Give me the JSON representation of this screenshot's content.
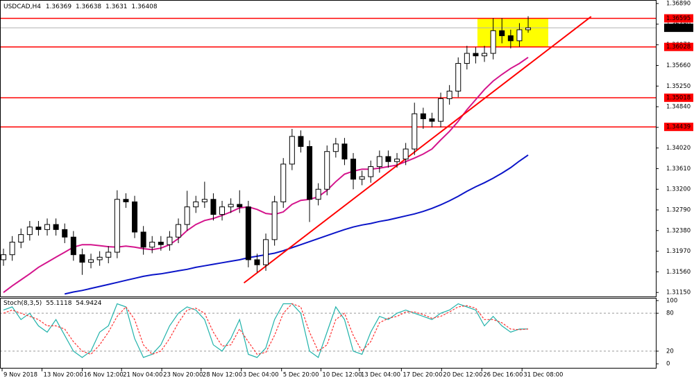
{
  "chart_data": [
    {
      "type": "candlestick",
      "title": "USDCAD,H4",
      "xlim": [
        -0.4,
        74.6
      ],
      "xticks": [
        {
          "value": -0.16,
          "label": "9 Nov 2018"
        },
        {
          "value": 4.4,
          "label": "13 Nov 20:00"
        },
        {
          "value": 9.0,
          "label": "16 Nov 12:00"
        },
        {
          "value": 13.5,
          "label": "21 Nov 04:00"
        },
        {
          "value": 18.1,
          "label": "23 Nov 20:00"
        },
        {
          "value": 22.6,
          "label": "28 Nov 12:00"
        },
        {
          "value": 27.2,
          "label": "3 Dec 04:00"
        },
        {
          "value": 31.8,
          "label": "5 Dec 20:00"
        },
        {
          "value": 36.3,
          "label": "10 Dec 12:00"
        },
        {
          "value": 40.7,
          "label": "13 Dec 04:00"
        },
        {
          "value": 45.5,
          "label": "17 Dec 20:00"
        },
        {
          "value": 50.1,
          "label": "20 Dec 12:00"
        },
        {
          "value": 54.7,
          "label": "26 Dec 16:00"
        },
        {
          "value": 59.3,
          "label": "31 Dec 08:00"
        }
      ],
      "ylim": [
        1.3107,
        1.3696
      ],
      "yticks": [
        {
          "value": 1.3689,
          "label": "1.36890"
        },
        {
          "value": 1.3648,
          "label": "1.36480"
        },
        {
          "value": 1.3607,
          "label": "1.36070"
        },
        {
          "value": 1.3566,
          "label": "1.35660"
        },
        {
          "value": 1.3525,
          "label": "1.35250"
        },
        {
          "value": 1.3484,
          "label": "1.34840"
        },
        {
          "value": 1.3443,
          "label": "1.34430"
        },
        {
          "value": 1.3402,
          "label": "1.34020"
        },
        {
          "value": 1.3361,
          "label": "1.33610"
        },
        {
          "value": 1.332,
          "label": "1.33200"
        },
        {
          "value": 1.3279,
          "label": "1.32790"
        },
        {
          "value": 1.3238,
          "label": "1.32380"
        },
        {
          "value": 1.3197,
          "label": "1.31970"
        },
        {
          "value": 1.3156,
          "label": "1.31560"
        },
        {
          "value": 1.3115,
          "label": "1.31150"
        }
      ],
      "open": [
        1.318,
        1.319,
        1.3215,
        1.323,
        1.3245,
        1.324,
        1.325,
        1.324,
        1.3225,
        1.319,
        1.3175,
        1.318,
        1.3185,
        1.3195,
        1.33,
        1.3295,
        1.3235,
        1.3205,
        1.3215,
        1.321,
        1.3225,
        1.325,
        1.3285,
        1.3295,
        1.33,
        1.327,
        1.3285,
        1.329,
        1.3285,
        1.318,
        1.317,
        1.322,
        1.3295,
        1.337,
        1.3425,
        1.3405,
        1.33,
        1.332,
        1.3395,
        1.341,
        1.338,
        1.334,
        1.3345,
        1.3365,
        1.3385,
        1.3375,
        1.338,
        1.34,
        1.347,
        1.346,
        1.3455,
        1.35,
        1.3515,
        1.357,
        1.359,
        1.3585,
        1.359,
        1.3635,
        1.3625,
        1.3615,
        1.36369
      ],
      "high": [
        1.3202,
        1.3227,
        1.3242,
        1.3257,
        1.3257,
        1.3262,
        1.3262,
        1.3252,
        1.3237,
        1.3202,
        1.3192,
        1.3197,
        1.3207,
        1.3318,
        1.3312,
        1.3307,
        1.3247,
        1.3227,
        1.3227,
        1.3237,
        1.3262,
        1.3317,
        1.3307,
        1.3335,
        1.3312,
        1.3297,
        1.3302,
        1.3318,
        1.3297,
        1.3192,
        1.3232,
        1.3307,
        1.3382,
        1.344,
        1.3437,
        1.3417,
        1.3332,
        1.3407,
        1.3422,
        1.3422,
        1.3392,
        1.3357,
        1.3377,
        1.3397,
        1.3397,
        1.3392,
        1.3412,
        1.3492,
        1.3482,
        1.3472,
        1.3512,
        1.3527,
        1.3582,
        1.3605,
        1.3602,
        1.3605,
        1.366,
        1.366,
        1.3637,
        1.365,
        1.36638
      ],
      "low": [
        1.3168,
        1.3178,
        1.3203,
        1.3218,
        1.3228,
        1.3228,
        1.3228,
        1.3213,
        1.3178,
        1.315,
        1.3163,
        1.3168,
        1.3173,
        1.3183,
        1.3283,
        1.3223,
        1.319,
        1.3193,
        1.3198,
        1.3198,
        1.3213,
        1.3238,
        1.3273,
        1.3283,
        1.3258,
        1.3258,
        1.3273,
        1.3273,
        1.3165,
        1.3155,
        1.3158,
        1.3208,
        1.3283,
        1.3358,
        1.3393,
        1.3255,
        1.3288,
        1.3308,
        1.3383,
        1.3368,
        1.332,
        1.3328,
        1.3333,
        1.3353,
        1.3363,
        1.3363,
        1.3368,
        1.3388,
        1.344,
        1.3443,
        1.3443,
        1.3488,
        1.3503,
        1.3558,
        1.357,
        1.3573,
        1.3578,
        1.361,
        1.36,
        1.3603,
        1.3631
      ],
      "close": [
        1.319,
        1.3215,
        1.323,
        1.3245,
        1.324,
        1.325,
        1.324,
        1.3225,
        1.319,
        1.3175,
        1.318,
        1.3185,
        1.3195,
        1.33,
        1.3295,
        1.3235,
        1.3205,
        1.3215,
        1.321,
        1.3225,
        1.325,
        1.3285,
        1.3295,
        1.33,
        1.327,
        1.3285,
        1.329,
        1.3285,
        1.318,
        1.317,
        1.322,
        1.3295,
        1.337,
        1.3425,
        1.3405,
        1.33,
        1.332,
        1.3395,
        1.341,
        1.338,
        1.334,
        1.3345,
        1.3365,
        1.3385,
        1.3375,
        1.338,
        1.34,
        1.347,
        1.346,
        1.3455,
        1.35,
        1.3515,
        1.357,
        1.359,
        1.3585,
        1.359,
        1.3635,
        1.3625,
        1.3615,
        1.36369,
        1.36408
      ],
      "series": [
        {
          "color": "#d4148c",
          "values": [
            1.3115,
            1.3128,
            1.314,
            1.3152,
            1.3165,
            1.3175,
            1.3185,
            1.3195,
            1.3205,
            1.321,
            1.321,
            1.3208,
            1.3206,
            1.3205,
            1.3207,
            1.3205,
            1.3202,
            1.32,
            1.3203,
            1.321,
            1.3222,
            1.3238,
            1.325,
            1.3258,
            1.3262,
            1.3268,
            1.3275,
            1.3283,
            1.3285,
            1.328,
            1.3272,
            1.327,
            1.3275,
            1.329,
            1.3298,
            1.33,
            1.3305,
            1.3318,
            1.3335,
            1.335,
            1.3356,
            1.336,
            1.336,
            1.3362,
            1.3365,
            1.3368,
            1.3375,
            1.3382,
            1.339,
            1.34,
            1.3418,
            1.3435,
            1.3455,
            1.3478,
            1.3498,
            1.3518,
            1.3535,
            1.3548,
            1.356,
            1.357,
            1.3582
          ]
        },
        {
          "color": "#0a14c8",
          "values": [
            null,
            null,
            null,
            null,
            null,
            null,
            null,
            1.3112,
            1.3116,
            1.3119,
            1.3123,
            1.3127,
            1.3131,
            1.3135,
            1.3139,
            1.3143,
            1.3147,
            1.315,
            1.3152,
            1.3155,
            1.3158,
            1.3161,
            1.3165,
            1.3168,
            1.3171,
            1.3174,
            1.3177,
            1.318,
            1.3184,
            1.3187,
            1.319,
            1.3193,
            1.3198,
            1.3204,
            1.321,
            1.3216,
            1.3222,
            1.3228,
            1.3234,
            1.324,
            1.3245,
            1.3249,
            1.3252,
            1.3256,
            1.3259,
            1.3263,
            1.3267,
            1.3271,
            1.3276,
            1.3282,
            1.3289,
            1.3297,
            1.3306,
            1.3316,
            1.3325,
            1.3333,
            1.3342,
            1.3352,
            1.3363,
            1.3376,
            1.3388
          ]
        }
      ],
      "levels": [
        1.36595,
        1.36028,
        1.35018,
        1.34439
      ],
      "level_color": "#ff0000",
      "trendline": {
        "x": [
          27.5,
          67.2
        ],
        "values": [
          1.3134,
          1.3663
        ],
        "color": "#ff0000"
      },
      "highlight": {
        "x": [
          54.2,
          62.3
        ],
        "values": [
          1.36028,
          1.36595
        ],
        "color": "#ffff00"
      }
    },
    {
      "type": "line",
      "title": "Stoch(8,3,5)",
      "xlim": [
        -0.4,
        74.6
      ],
      "ylim": [
        -7.5,
        104.3
      ],
      "yticks": [
        100,
        80,
        20,
        0
      ],
      "levels": [
        80,
        20
      ],
      "series": [
        {
          "color": "#20b2aa",
          "dash": false,
          "values": [
            85,
            90,
            70,
            80,
            60,
            50,
            70,
            45,
            20,
            10,
            20,
            50,
            60,
            95,
            90,
            40,
            10,
            15,
            30,
            60,
            80,
            90,
            85,
            70,
            30,
            20,
            40,
            70,
            15,
            10,
            25,
            70,
            95,
            95,
            80,
            20,
            10,
            50,
            90,
            70,
            20,
            15,
            50,
            75,
            70,
            80,
            85,
            80,
            75,
            70,
            80,
            85,
            95,
            90,
            85,
            60,
            75,
            60,
            50,
            55,
            55.1118
          ]
        },
        {
          "color": "#ff3030",
          "dash": true,
          "values": [
            80,
            85,
            80,
            75,
            70,
            60,
            60,
            55,
            35,
            20,
            15,
            30,
            50,
            75,
            90,
            70,
            30,
            15,
            20,
            40,
            65,
            85,
            88,
            80,
            50,
            28,
            30,
            55,
            35,
            15,
            18,
            45,
            80,
            95,
            90,
            50,
            20,
            30,
            70,
            80,
            45,
            20,
            35,
            65,
            72,
            75,
            82,
            82,
            78,
            72,
            75,
            82,
            90,
            92,
            88,
            70,
            70,
            65,
            55,
            54,
            54.9424
          ]
        }
      ]
    }
  ]
}
